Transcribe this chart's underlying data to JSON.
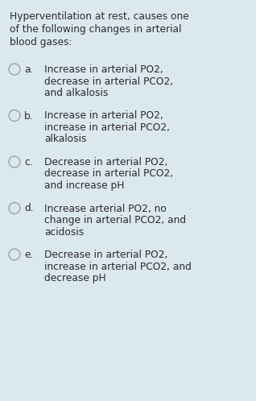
{
  "bg_color": "#dce8f0",
  "title_lines": [
    "Hyperventilation at rest, causes one",
    "of the following changes in arterial",
    "blood gases:"
  ],
  "options": [
    {
      "label": "a.",
      "lines": [
        "Increase in arterial PO2,",
        "decrease in arterial PCO2,",
        "and alkalosis"
      ]
    },
    {
      "label": "b.",
      "lines": [
        "Increase in arterial PO2,",
        "increase in arterial PCO2,",
        "alkalosis"
      ]
    },
    {
      "label": "c.",
      "lines": [
        "Decrease in arterial PO2,",
        "decrease in arterial PCO2,",
        "and increase pH"
      ]
    },
    {
      "label": "d.",
      "lines": [
        "Increase arterial PO2, no",
        "change in arterial PCO2, and",
        "acidosis"
      ]
    },
    {
      "label": "e.",
      "lines": [
        "Decrease in arterial PO2,",
        "increase in arterial PCO2, and",
        "decrease pH"
      ]
    }
  ],
  "title_fontsize": 8.8,
  "option_fontsize": 8.8,
  "text_color": "#2a2a2a",
  "circle_color": "#999999",
  "circle_fill": "#d8e8f0"
}
